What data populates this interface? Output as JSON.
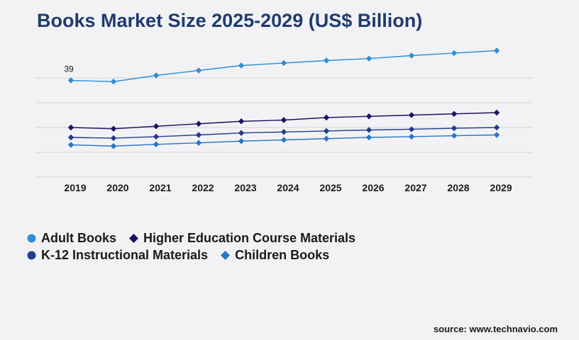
{
  "chart_data": {
    "type": "line",
    "title": "Books Market Size 2025-2029 (US$ Billion)",
    "xlabel": "",
    "ylabel": "",
    "x": [
      "2019",
      "2020",
      "2021",
      "2022",
      "2023",
      "2024",
      "2025",
      "2026",
      "2027",
      "2028",
      "2029"
    ],
    "ylim": [
      0,
      50
    ],
    "grid": true,
    "legend_placement": "bottom-left",
    "series": [
      {
        "name": "Adult Books",
        "color": "#2e8fd6",
        "values": [
          39,
          38.5,
          41,
          43,
          45,
          46,
          47,
          47.8,
          49,
          50,
          51
        ]
      },
      {
        "name": "Higher Education Course Materials",
        "color": "#1b1464",
        "values": [
          20,
          19.5,
          20.5,
          21.5,
          22.5,
          23,
          24,
          24.5,
          25,
          25.5,
          26
        ]
      },
      {
        "name": "K-12 Instructional Materials",
        "color": "#253b8c",
        "values": [
          16,
          15.7,
          16.3,
          17,
          17.8,
          18.2,
          18.6,
          19,
          19.3,
          19.7,
          20
        ]
      },
      {
        "name": "Children Books",
        "color": "#2677c9",
        "values": [
          13,
          12.5,
          13.2,
          13.8,
          14.5,
          15,
          15.5,
          16,
          16.3,
          16.7,
          17
        ]
      }
    ],
    "annotations": [
      {
        "series": 0,
        "index": 0,
        "text": "39"
      }
    ]
  },
  "source": "source: www.technavio.com"
}
